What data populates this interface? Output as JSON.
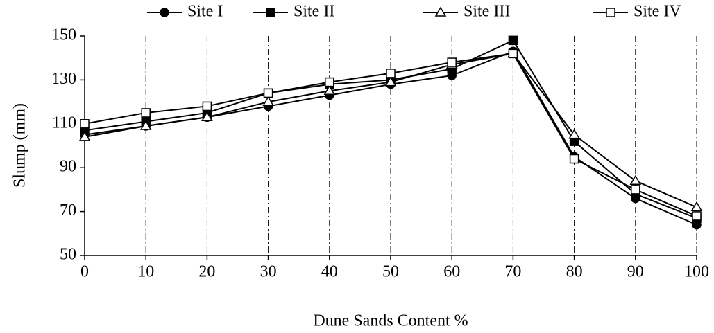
{
  "chart_data": {
    "type": "line",
    "x_label": "Dune Sands Content %",
    "y_label": "Slump (mm)",
    "x": [
      0,
      10,
      20,
      30,
      40,
      50,
      60,
      70,
      80,
      90,
      100
    ],
    "xlim": [
      0,
      100
    ],
    "xticks": [
      0,
      10,
      20,
      30,
      40,
      50,
      60,
      70,
      80,
      90,
      100
    ],
    "ylim": [
      50,
      150
    ],
    "yticks": [
      50,
      70,
      90,
      110,
      130,
      150
    ],
    "grid": "vertical-dash-dot",
    "legend": "top",
    "series": [
      {
        "name": "Site I",
        "color": "#000000",
        "marker": "circle",
        "filled": true,
        "values": [
          105,
          109,
          113,
          118,
          123,
          128,
          132,
          143,
          95,
          76,
          64
        ]
      },
      {
        "name": "Site II",
        "color": "#000000",
        "marker": "square",
        "filled": true,
        "values": [
          107,
          111,
          115,
          124,
          128,
          130,
          135,
          148,
          102,
          78,
          67
        ]
      },
      {
        "name": "Site III",
        "color": "#000000",
        "marker": "triangle",
        "filled": false,
        "values": [
          104,
          109,
          113,
          120,
          125,
          129,
          137,
          142,
          105,
          84,
          72
        ]
      },
      {
        "name": "Site IV",
        "color": "#000000",
        "marker": "square",
        "filled": false,
        "values": [
          110,
          115,
          118,
          124,
          129,
          133,
          138,
          142,
          94,
          80,
          68
        ]
      }
    ]
  }
}
